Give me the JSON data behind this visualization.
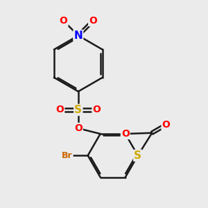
{
  "bg_color": "#ebebeb",
  "bond_color": "#1a1a1a",
  "line_width": 1.8,
  "atom_colors": {
    "O": "#ff0000",
    "N": "#0000ff",
    "S": "#ccaa00",
    "Br": "#cc6600",
    "C": "#1a1a1a"
  },
  "font_size": 11
}
